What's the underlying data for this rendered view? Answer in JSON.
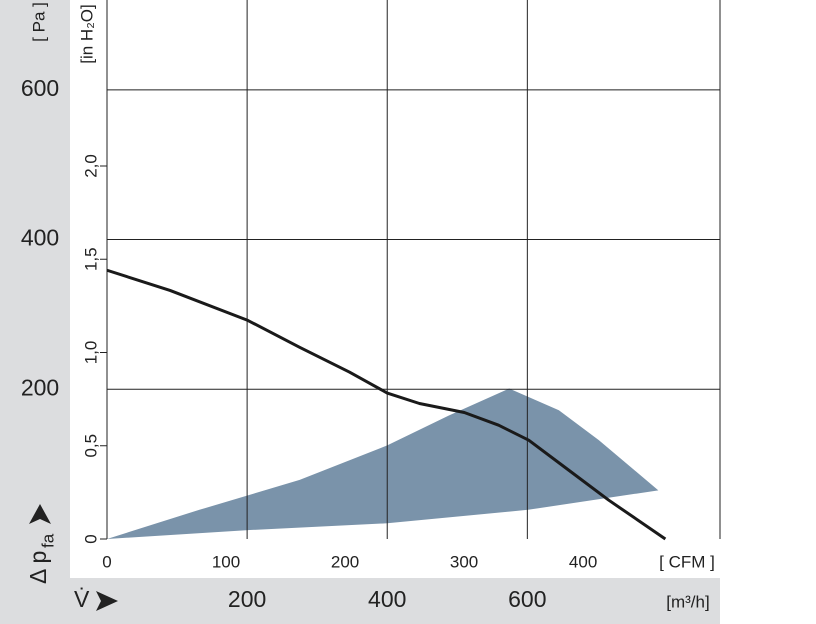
{
  "chart_data": {
    "type": "line",
    "ylabel": "Δ p",
    "ylabel_sub": "fa",
    "ylabel_unit": "[ Pa ]",
    "y2label": "[in H₂O]",
    "xlabel": "V̇",
    "xlabel_unit": "[m³/h]",
    "x2label": "[ CFM ]",
    "xlim": [
      0,
      875
    ],
    "xticks": [
      200,
      400,
      600
    ],
    "x2lim": [
      0,
      515
    ],
    "x2ticks": [
      0,
      100,
      200,
      300,
      400
    ],
    "ylim": [
      0,
      720
    ],
    "yticks": [
      200,
      400,
      600
    ],
    "y2lim": [
      0,
      2.89
    ],
    "y2ticks": [
      0,
      {
        "value": 0.5,
        "label": "0,5"
      },
      {
        "value": 1.0,
        "label": "1,0"
      },
      {
        "value": 1.5,
        "label": "1,5"
      },
      {
        "value": 2.0,
        "label": "2,0"
      }
    ],
    "grid": true,
    "series": [
      {
        "color": "#1a1a1a",
        "x": [
          0,
          90,
          201,
          275,
          346,
          400,
          446,
          510,
          559,
          602,
          659,
          716,
          797
        ],
        "values": [
          359,
          332,
          292,
          256,
          223,
          195,
          181,
          169,
          152,
          132,
          92,
          52,
          0
        ]
      }
    ],
    "region": {
      "color": "#7a93aa",
      "x": [
        0,
        204,
        400,
        601,
        787,
        702,
        645,
        574,
        488,
        400,
        275,
        132
      ],
      "values": [
        0,
        12,
        21,
        39,
        65,
        132,
        172,
        201,
        165,
        125,
        79,
        39
      ]
    }
  }
}
